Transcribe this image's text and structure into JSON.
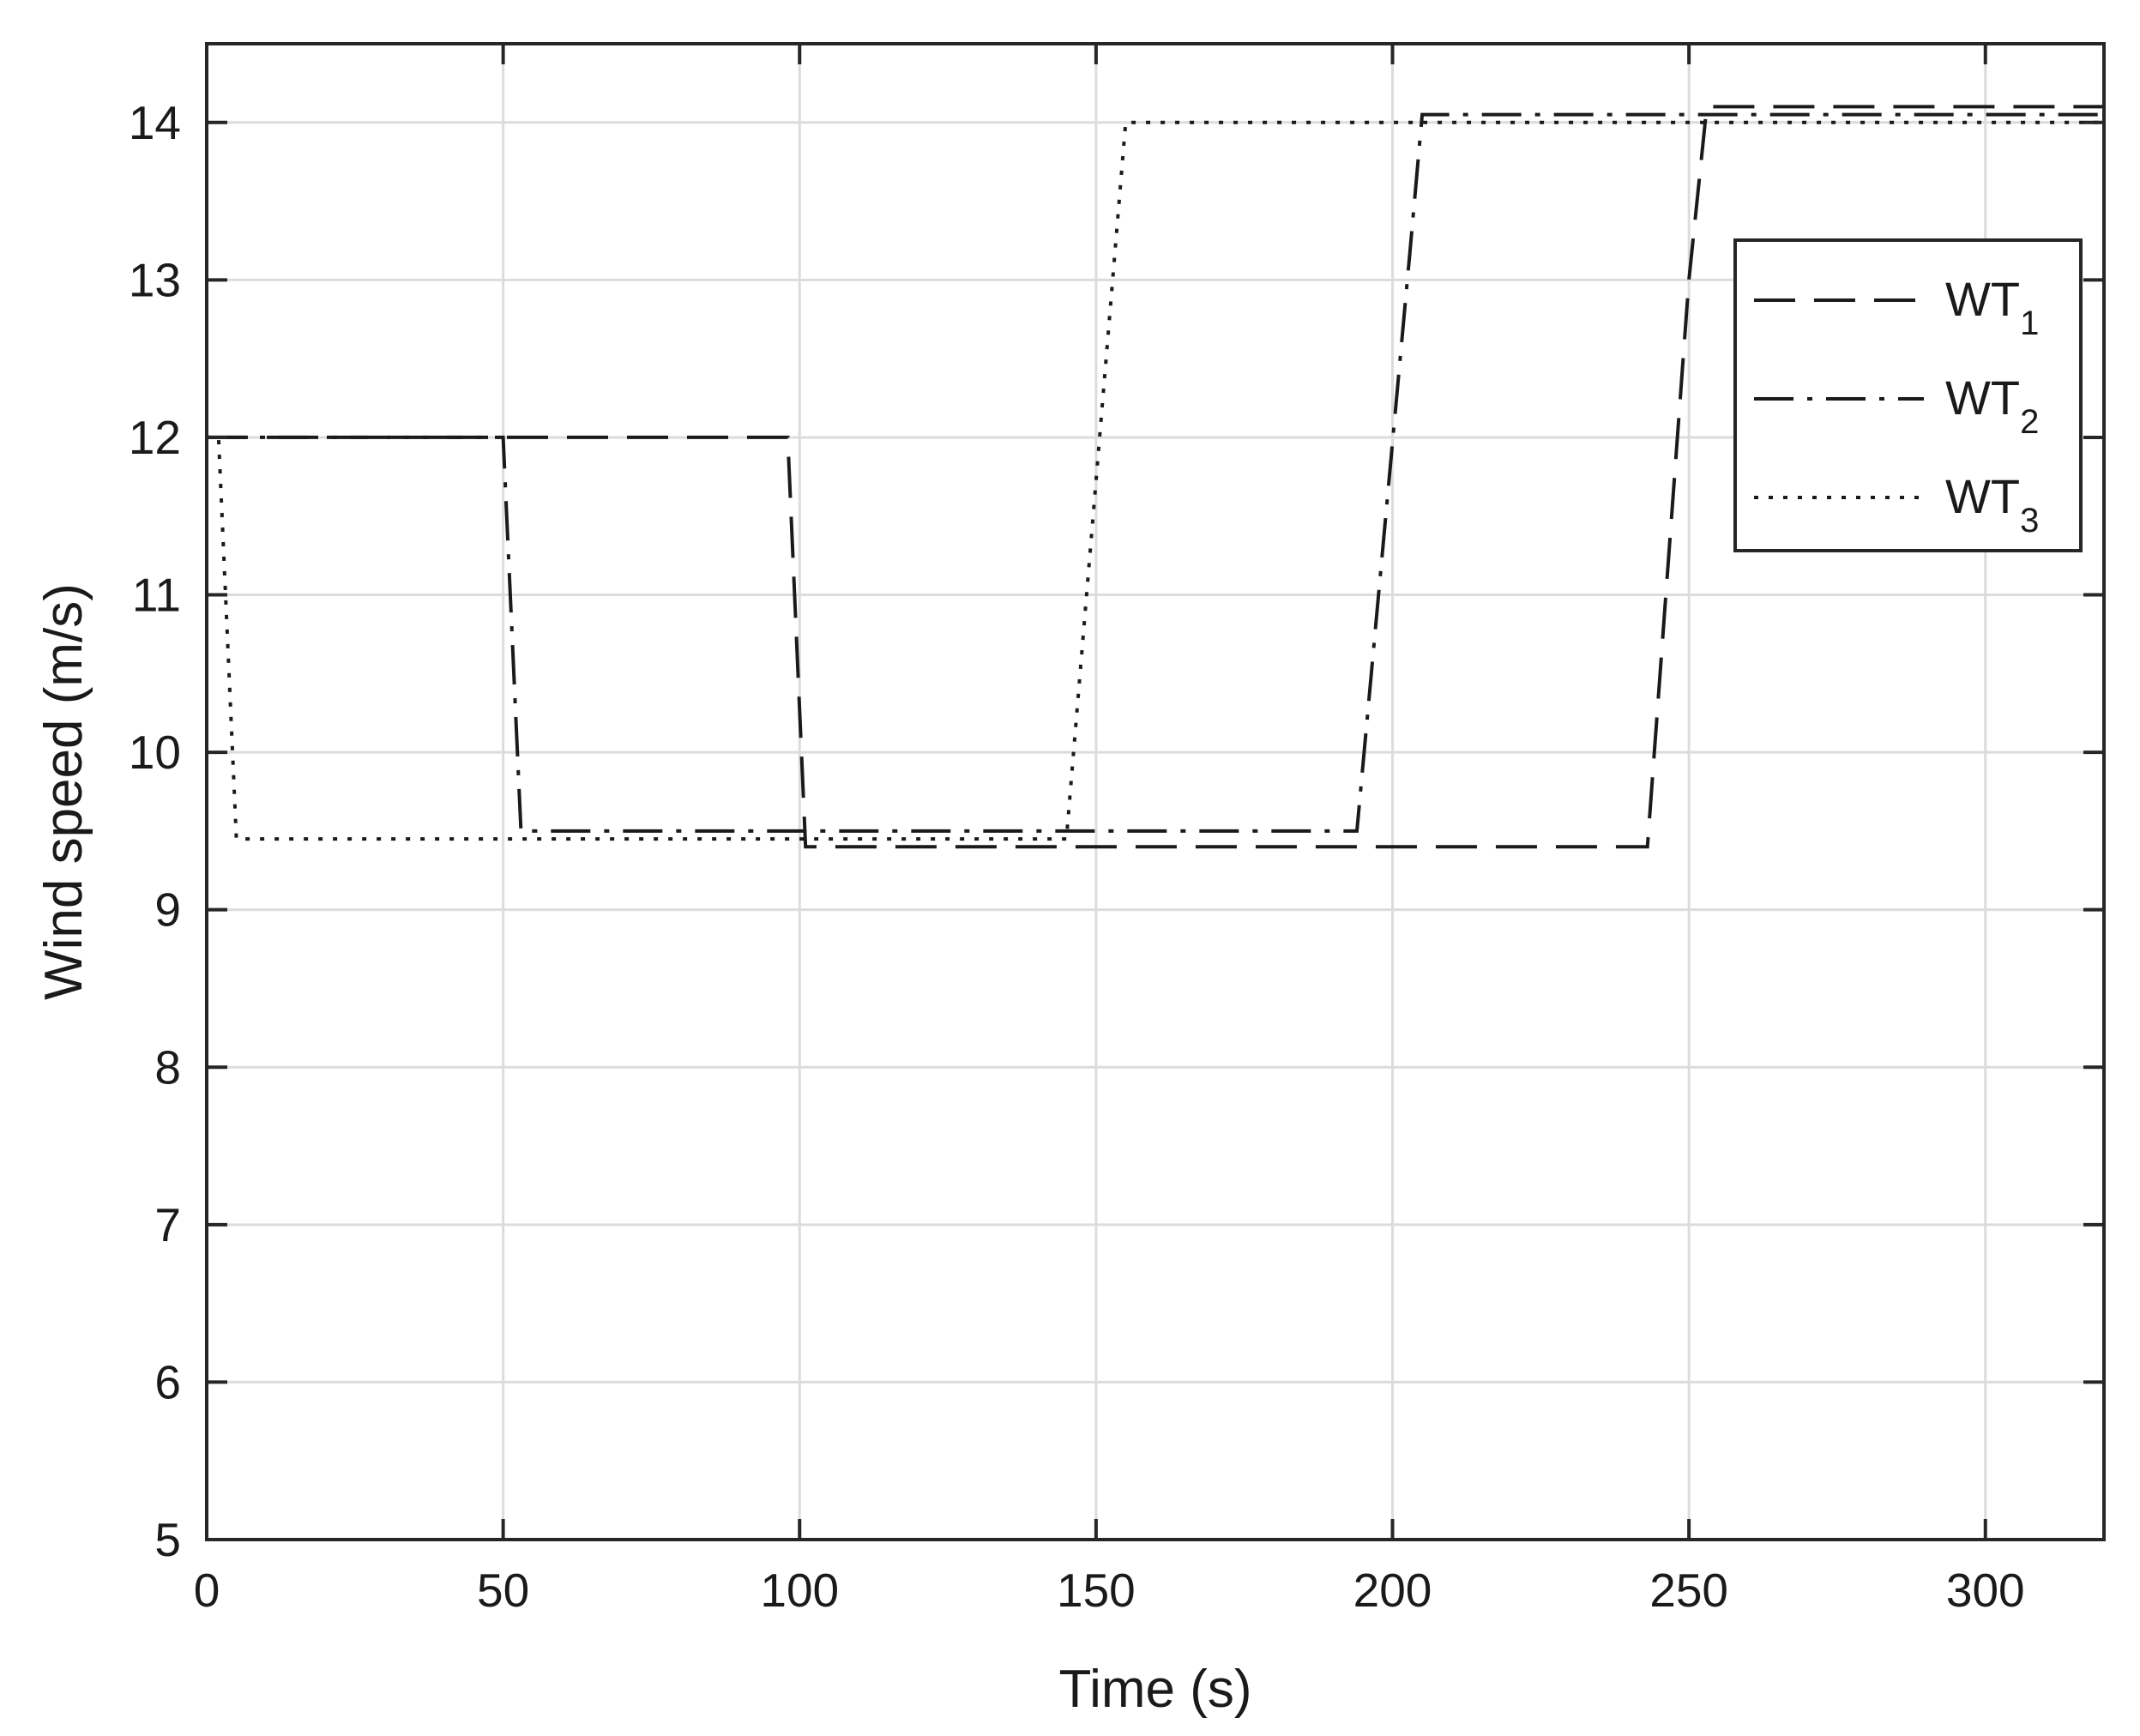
{
  "chart_data": {
    "type": "line",
    "xlabel": "Time (s)",
    "ylabel": "Wind speed (m/s)",
    "xlim": [
      0,
      320
    ],
    "ylim": [
      5,
      14.5
    ],
    "xticks": [
      0,
      50,
      100,
      150,
      200,
      250,
      300
    ],
    "yticks": [
      5,
      6,
      7,
      8,
      9,
      10,
      11,
      12,
      13,
      14
    ],
    "xtick_labels": [
      "0",
      "50",
      "100",
      "150",
      "200",
      "250",
      "300"
    ],
    "ytick_labels": [
      "5",
      "6",
      "7",
      "8",
      "9",
      "10",
      "11",
      "12",
      "13",
      "14"
    ],
    "grid": true,
    "legend_position": "top-right",
    "series": [
      {
        "name": "WT",
        "subscript": "1",
        "style": "dashed",
        "color": "#1a1a1a",
        "x": [
          0,
          98,
          101,
          243,
          250,
          253,
          320
        ],
        "y": [
          12,
          12,
          9.4,
          9.4,
          13,
          14.1,
          14.1
        ]
      },
      {
        "name": "WT",
        "subscript": "2",
        "style": "dashdot",
        "color": "#1a1a1a",
        "x": [
          0,
          50,
          53,
          194,
          203,
          205,
          320
        ],
        "y": [
          12,
          12,
          9.5,
          9.5,
          13.2,
          14.05,
          14.05
        ]
      },
      {
        "name": "WT",
        "subscript": "3",
        "style": "dotted",
        "color": "#1a1a1a",
        "x": [
          0,
          2,
          5,
          145,
          155,
          320
        ],
        "y": [
          12,
          12,
          9.45,
          9.45,
          14,
          14
        ]
      }
    ]
  }
}
